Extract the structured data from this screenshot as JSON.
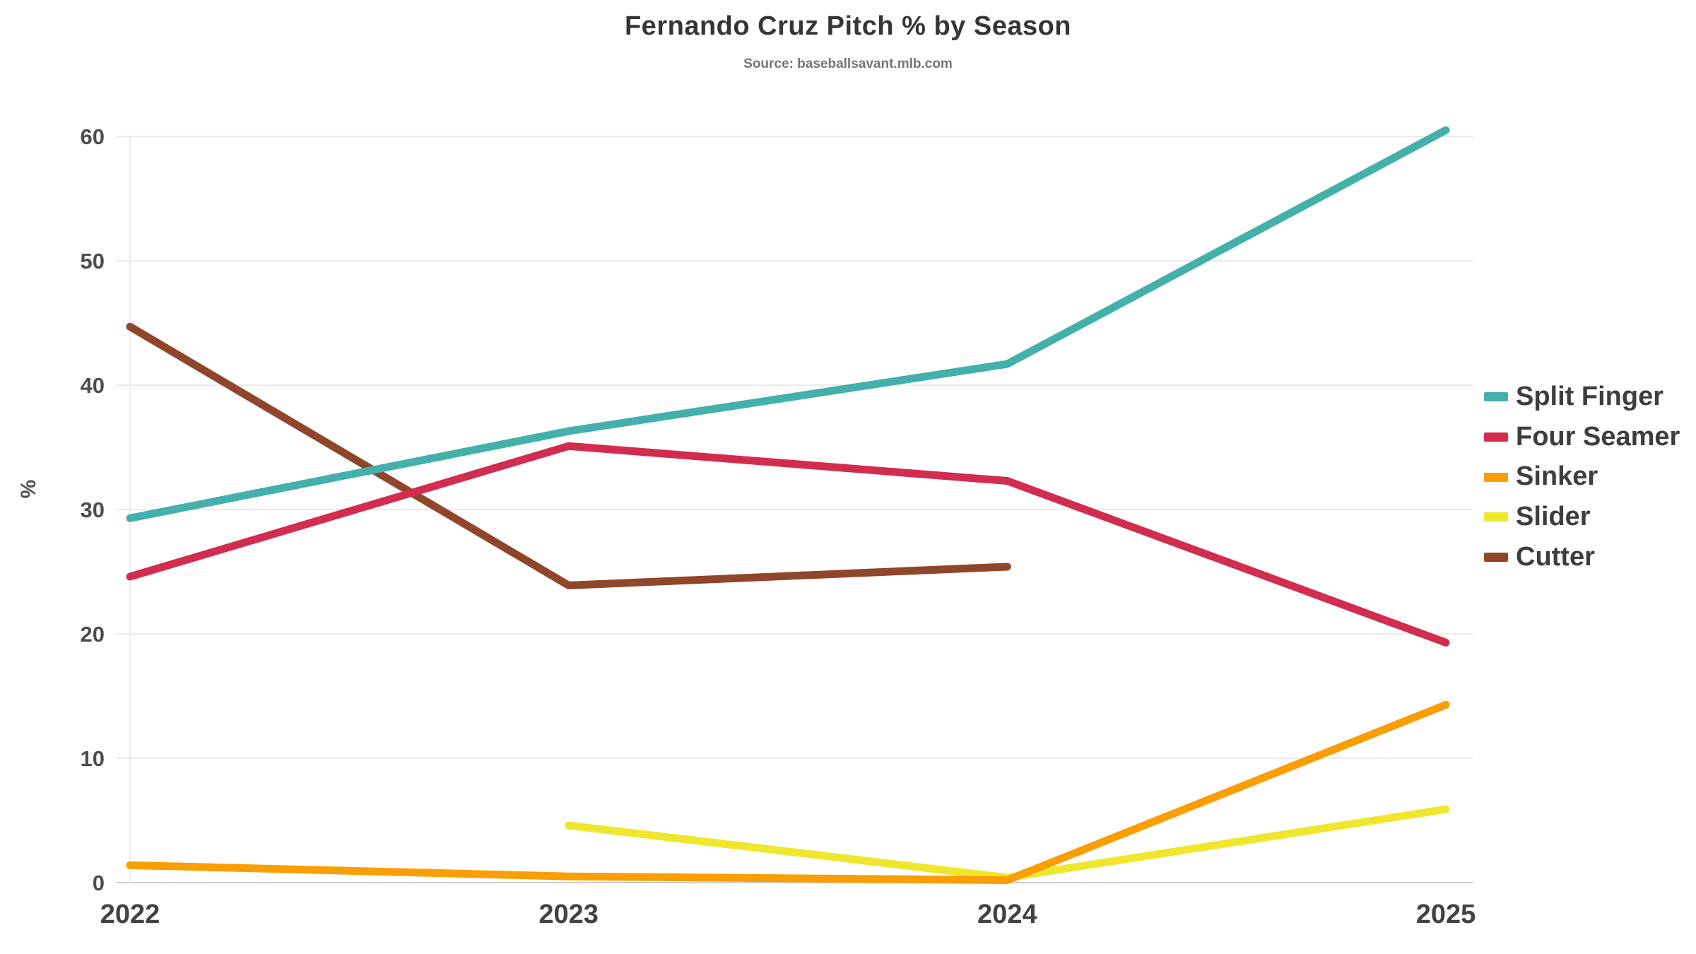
{
  "chart_data": {
    "type": "line",
    "title": "Fernando Cruz Pitch % by Season",
    "subtitle": "Source: baseballsavant.mlb.com",
    "x": [
      "2022",
      "2023",
      "2024",
      "2025"
    ],
    "xlabel": "",
    "ylabel": "%",
    "ylim": [
      0,
      60
    ],
    "yticks": [
      0,
      10,
      20,
      30,
      40,
      50,
      60
    ],
    "grid": "horizontal",
    "legend_position": "right",
    "series": [
      {
        "name": "Split Finger",
        "color": "#44b0aa",
        "values": [
          29.3,
          36.3,
          41.7,
          60.5
        ]
      },
      {
        "name": "Four Seamer",
        "color": "#d22c4e",
        "values": [
          24.6,
          35.1,
          32.3,
          19.3
        ]
      },
      {
        "name": "Sinker",
        "color": "#fa9e06",
        "values": [
          1.4,
          0.5,
          0.2,
          14.3
        ]
      },
      {
        "name": "Slider",
        "color": "#efe72e",
        "values": [
          null,
          4.6,
          0.4,
          5.9
        ]
      },
      {
        "name": "Cutter",
        "color": "#8f462b",
        "values": [
          44.7,
          23.9,
          25.4,
          null
        ]
      }
    ]
  }
}
